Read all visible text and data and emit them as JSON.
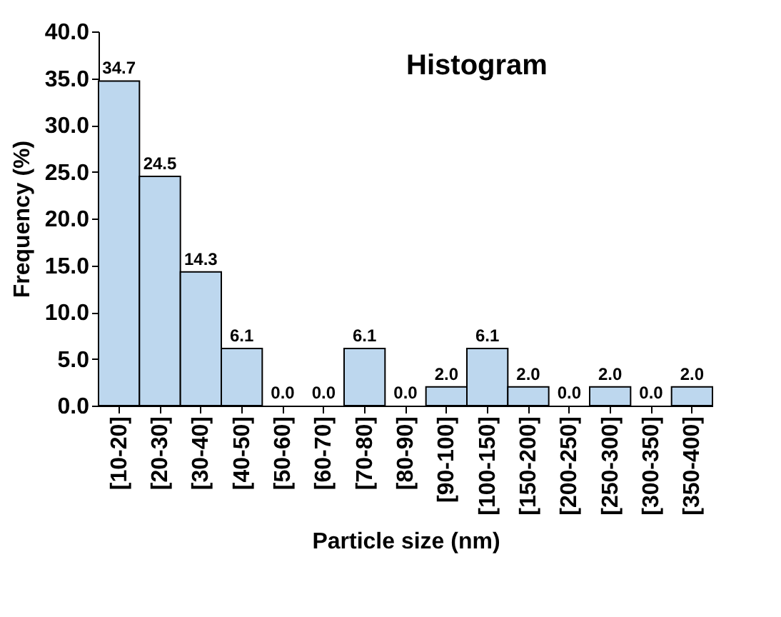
{
  "chart_data": {
    "type": "bar",
    "title": "Histogram",
    "xlabel": "Particle size (nm)",
    "ylabel": "Frequency (%)",
    "categories": [
      "[10-20]",
      "[20-30]",
      "[30-40]",
      "[40-50]",
      "[50-60]",
      "[60-70]",
      "[70-80]",
      "[80-90]",
      "[90-100]",
      "[100-150]",
      "[150-200]",
      "[200-250]",
      "[250-300]",
      "[300-350]",
      "[350-400]"
    ],
    "values": [
      34.7,
      24.5,
      14.3,
      6.1,
      0.0,
      0.0,
      6.1,
      0.0,
      2.0,
      6.1,
      2.0,
      0.0,
      2.0,
      0.0,
      2.0
    ],
    "value_labels": [
      "34.7",
      "24.5",
      "14.3",
      "6.1",
      "0.0",
      "0.0",
      "6.1",
      "0.0",
      "2.0",
      "6.1",
      "2.0",
      "0.0",
      "2.0",
      "0.0",
      "2.0"
    ],
    "color": "#bdd7ee",
    "ylim": [
      0,
      40
    ],
    "yticks": [
      {
        "value": 0,
        "label": "0.0"
      },
      {
        "value": 5,
        "label": "5.0"
      },
      {
        "value": 10,
        "label": "10.0"
      },
      {
        "value": 15,
        "label": "15.0"
      },
      {
        "value": 20,
        "label": "20.0"
      },
      {
        "value": 25,
        "label": "25.0"
      },
      {
        "value": 30,
        "label": "30.0"
      },
      {
        "value": 35,
        "label": "35.0"
      },
      {
        "value": 40,
        "label": "40.0"
      }
    ],
    "grid": false
  }
}
